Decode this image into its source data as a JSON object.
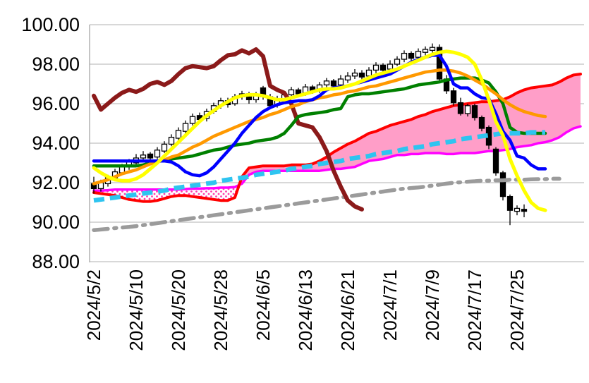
{
  "chart_data": {
    "type": "candlestick",
    "title": "",
    "background": "#FFFFFF",
    "grid": {
      "color": "#C0C0C0",
      "axis_color": "#A6A6A6",
      "grid_on": true
    },
    "y_axis": {
      "min": 88,
      "max": 100,
      "step": 2,
      "ticks": [
        {
          "value": 100,
          "label": "100.00"
        },
        {
          "value": 98,
          "label": "98.00"
        },
        {
          "value": 96,
          "label": "96.00"
        },
        {
          "value": 94,
          "label": "94.00"
        },
        {
          "value": 92,
          "label": "92.00"
        },
        {
          "value": 90,
          "label": "90.00"
        },
        {
          "value": 88,
          "label": "88.00"
        }
      ]
    },
    "x_axis": {
      "ticks": [
        {
          "index": 0,
          "label": "2024/5/2"
        },
        {
          "index": 6,
          "label": "2024/5/10"
        },
        {
          "index": 12,
          "label": "2024/5/20"
        },
        {
          "index": 18,
          "label": "2024/5/28"
        },
        {
          "index": 24,
          "label": "2024/6/5"
        },
        {
          "index": 30,
          "label": "2024/6/13"
        },
        {
          "index": 36,
          "label": "2024/6/21"
        },
        {
          "index": 42,
          "label": "2024/7/1"
        },
        {
          "index": 48,
          "label": "2024/7/9"
        },
        {
          "index": 54,
          "label": "2024/7/17"
        },
        {
          "index": 60,
          "label": "2024/7/25"
        }
      ]
    },
    "candles": {
      "up_fill": "#FFFFFF",
      "down_fill": "#000000",
      "stroke": "#000000",
      "start_index": 0,
      "ohlc": [
        [
          91.95,
          92.3,
          91.45,
          91.7
        ],
        [
          91.7,
          92.15,
          91.55,
          92.0
        ],
        [
          91.95,
          92.4,
          91.8,
          92.25
        ],
        [
          92.25,
          92.7,
          92.1,
          92.55
        ],
        [
          92.5,
          92.95,
          92.4,
          92.8
        ],
        [
          92.8,
          93.2,
          92.65,
          93.05
        ],
        [
          93.0,
          93.45,
          92.9,
          93.25
        ],
        [
          93.25,
          93.6,
          93.1,
          93.4
        ],
        [
          93.45,
          93.55,
          93.0,
          93.25
        ],
        [
          93.3,
          93.8,
          93.2,
          93.65
        ],
        [
          93.6,
          94.1,
          93.5,
          93.95
        ],
        [
          93.95,
          94.45,
          93.85,
          94.3
        ],
        [
          94.25,
          94.8,
          94.15,
          94.65
        ],
        [
          94.6,
          95.15,
          94.5,
          95.0
        ],
        [
          95.0,
          95.5,
          94.9,
          95.35
        ],
        [
          95.4,
          95.55,
          95.0,
          95.2
        ],
        [
          95.25,
          95.75,
          95.1,
          95.6
        ],
        [
          95.6,
          96.05,
          95.5,
          95.9
        ],
        [
          95.9,
          96.3,
          95.75,
          96.15
        ],
        [
          96.15,
          96.3,
          95.8,
          95.95
        ],
        [
          96.0,
          96.5,
          95.9,
          96.35
        ],
        [
          96.35,
          96.65,
          96.2,
          96.5
        ],
        [
          96.5,
          96.6,
          96.0,
          96.2
        ],
        [
          96.2,
          96.6,
          96.05,
          96.45
        ],
        [
          96.8,
          96.9,
          96.2,
          96.35
        ],
        [
          96.35,
          96.5,
          95.75,
          95.9
        ],
        [
          95.95,
          96.4,
          95.8,
          96.25
        ],
        [
          96.2,
          96.6,
          96.1,
          96.45
        ],
        [
          96.45,
          96.85,
          96.3,
          96.7
        ],
        [
          96.7,
          96.8,
          96.35,
          96.5
        ],
        [
          96.55,
          97.0,
          96.4,
          96.85
        ],
        [
          96.85,
          96.95,
          96.5,
          96.65
        ],
        [
          96.65,
          97.1,
          96.55,
          96.95
        ],
        [
          96.95,
          97.3,
          96.8,
          97.15
        ],
        [
          97.15,
          97.25,
          96.75,
          96.9
        ],
        [
          96.95,
          97.45,
          96.8,
          97.25
        ],
        [
          97.2,
          97.6,
          97.05,
          97.4
        ],
        [
          97.4,
          97.75,
          97.25,
          97.55
        ],
        [
          97.55,
          97.7,
          97.2,
          97.35
        ],
        [
          97.4,
          97.85,
          97.25,
          97.7
        ],
        [
          97.7,
          98.1,
          97.55,
          97.95
        ],
        [
          97.95,
          98.05,
          97.55,
          97.7
        ],
        [
          97.75,
          98.2,
          97.6,
          98.0
        ],
        [
          98.0,
          98.4,
          97.9,
          98.25
        ],
        [
          98.25,
          98.7,
          98.1,
          98.55
        ],
        [
          98.55,
          98.65,
          98.15,
          98.3
        ],
        [
          98.35,
          98.8,
          98.2,
          98.65
        ],
        [
          98.6,
          98.9,
          98.45,
          98.75
        ],
        [
          98.7,
          99.05,
          98.55,
          98.85
        ],
        [
          98.85,
          99.0,
          97.1,
          97.25
        ],
        [
          97.25,
          97.45,
          96.5,
          96.65
        ],
        [
          96.65,
          96.8,
          95.9,
          96.05
        ],
        [
          96.05,
          96.3,
          95.4,
          95.5
        ],
        [
          95.5,
          96.0,
          95.35,
          95.9
        ],
        [
          95.9,
          96.0,
          95.15,
          95.3
        ],
        [
          95.3,
          95.4,
          94.6,
          94.75
        ],
        [
          94.8,
          94.9,
          93.7,
          93.9
        ],
        [
          93.7,
          93.8,
          92.35,
          92.5
        ],
        [
          92.5,
          92.6,
          91.1,
          91.3
        ],
        [
          91.3,
          91.4,
          89.85,
          90.6
        ],
        [
          90.55,
          90.85,
          90.35,
          90.7
        ],
        [
          90.65,
          90.9,
          90.25,
          90.55
        ]
      ]
    },
    "cloud": {
      "bull_fill": "#FF9EC8",
      "bear_dot_color": "#FF3FAE",
      "span_a": {
        "name": "red-span-line",
        "color": "#FF0000",
        "width": 4,
        "start_index": 0,
        "values": [
          91.5,
          91.45,
          91.4,
          91.35,
          91.25,
          91.15,
          91.1,
          91.05,
          91.05,
          91.1,
          91.2,
          91.3,
          91.35,
          91.35,
          91.3,
          91.25,
          91.2,
          91.15,
          91.1,
          91.1,
          91.25,
          92.3,
          92.75,
          92.8,
          92.85,
          92.85,
          92.85,
          92.85,
          92.9,
          92.9,
          92.9,
          92.95,
          93.1,
          93.3,
          93.55,
          93.75,
          93.95,
          94.1,
          94.3,
          94.5,
          94.6,
          94.75,
          94.9,
          95.0,
          95.1,
          95.2,
          95.35,
          95.45,
          95.6,
          95.7,
          95.8,
          95.9,
          95.95,
          96.0,
          96.05,
          96.1,
          96.1,
          96.15,
          96.2,
          96.35,
          96.55,
          96.7,
          96.8,
          96.85,
          96.9,
          96.95,
          97.1,
          97.3,
          97.45,
          97.5
        ]
      },
      "span_b": {
        "name": "magenta-span-line",
        "color": "#FF00FF",
        "width": 3.5,
        "start_index": 0,
        "values": [
          91.6,
          91.6,
          91.62,
          91.65,
          91.65,
          91.65,
          91.65,
          91.65,
          91.65,
          91.65,
          91.65,
          91.65,
          91.65,
          91.68,
          91.7,
          91.7,
          91.72,
          91.72,
          91.75,
          91.75,
          91.78,
          91.95,
          92.4,
          92.55,
          92.6,
          92.6,
          92.6,
          92.6,
          92.6,
          92.6,
          92.6,
          92.6,
          92.6,
          92.65,
          92.7,
          92.7,
          92.75,
          92.8,
          92.95,
          93.1,
          93.15,
          93.2,
          93.3,
          93.4,
          93.4,
          93.45,
          93.45,
          93.5,
          93.5,
          93.5,
          93.45,
          93.45,
          93.5,
          93.5,
          93.5,
          93.55,
          93.6,
          93.6,
          93.65,
          93.7,
          93.8,
          93.85,
          93.9,
          94.0,
          94.05,
          94.15,
          94.3,
          94.55,
          94.75,
          94.85
        ]
      }
    },
    "series": [
      {
        "name": "gray-dashdot-line",
        "color": "#9B9B9B",
        "width": 5.5,
        "dash": "20 9 3 9",
        "linecap": "round",
        "start_index": 0,
        "values": [
          89.6,
          89.63,
          89.66,
          89.7,
          89.73,
          89.76,
          89.8,
          89.85,
          89.9,
          89.95,
          90.0,
          90.05,
          90.1,
          90.15,
          90.2,
          90.25,
          90.3,
          90.35,
          90.4,
          90.45,
          90.5,
          90.55,
          90.6,
          90.65,
          90.7,
          90.75,
          90.8,
          90.85,
          90.9,
          90.95,
          91.0,
          91.05,
          91.1,
          91.15,
          91.2,
          91.25,
          91.3,
          91.35,
          91.4,
          91.45,
          91.5,
          91.55,
          91.6,
          91.65,
          91.7,
          91.73,
          91.76,
          91.8,
          91.85,
          91.9,
          91.95,
          92.0,
          92.02,
          92.05,
          92.07,
          92.1,
          92.1,
          92.12,
          92.12,
          92.15,
          92.15,
          92.15,
          92.17,
          92.18,
          92.18,
          92.2,
          92.2
        ]
      },
      {
        "name": "dark-red-line",
        "color": "#8B1A1A",
        "width": 6,
        "dash": "",
        "linecap": "round",
        "start_index": 0,
        "values": [
          96.4,
          95.7,
          96.0,
          96.3,
          96.55,
          96.7,
          96.6,
          96.75,
          97.0,
          97.1,
          96.95,
          97.15,
          97.5,
          97.8,
          97.9,
          97.85,
          97.8,
          97.9,
          98.2,
          98.45,
          98.5,
          98.7,
          98.55,
          98.75,
          98.4,
          96.9,
          96.7,
          96.55,
          96.0,
          95.0,
          94.9,
          94.8,
          94.3,
          93.6,
          92.6,
          91.8,
          91.1,
          90.8,
          90.65
        ]
      },
      {
        "name": "green-line",
        "color": "#008000",
        "width": 4.5,
        "dash": "",
        "linecap": "round",
        "start_index": 0,
        "values": [
          92.85,
          92.85,
          92.85,
          92.85,
          92.85,
          92.85,
          92.85,
          92.9,
          93.0,
          93.1,
          93.15,
          93.2,
          93.25,
          93.3,
          93.35,
          93.45,
          93.55,
          93.65,
          93.7,
          93.8,
          93.9,
          93.95,
          94.0,
          94.1,
          94.15,
          94.2,
          94.3,
          94.5,
          94.9,
          95.35,
          95.45,
          95.5,
          95.55,
          95.6,
          95.7,
          95.75,
          96.35,
          96.45,
          96.5,
          96.5,
          96.55,
          96.6,
          96.65,
          96.7,
          96.75,
          96.85,
          96.95,
          97.0,
          97.05,
          97.1,
          97.2,
          97.25,
          97.3,
          97.3,
          97.3,
          97.2,
          97.05,
          96.6,
          96.0,
          94.8,
          94.55,
          94.5,
          94.5,
          94.5,
          94.5
        ]
      },
      {
        "name": "orange-line",
        "color": "#FF9900",
        "width": 4.5,
        "dash": "",
        "linecap": "round",
        "start_index": 0,
        "values": [
          91.95,
          92.05,
          92.15,
          92.3,
          92.45,
          92.55,
          92.65,
          92.8,
          92.95,
          93.05,
          93.15,
          93.3,
          93.4,
          93.6,
          93.8,
          93.95,
          94.15,
          94.35,
          94.5,
          94.65,
          94.8,
          94.95,
          95.1,
          95.2,
          95.3,
          95.45,
          95.55,
          95.7,
          95.85,
          95.95,
          96.1,
          96.2,
          96.3,
          96.35,
          96.45,
          96.5,
          96.6,
          96.65,
          96.75,
          96.85,
          96.9,
          97.0,
          97.1,
          97.2,
          97.3,
          97.4,
          97.5,
          97.6,
          97.65,
          97.7,
          97.7,
          97.65,
          97.55,
          97.4,
          97.2,
          97.0,
          96.75,
          96.5,
          96.2,
          95.95,
          95.75,
          95.6,
          95.5,
          95.4,
          95.35
        ]
      },
      {
        "name": "cyan-dashed-line",
        "color": "#2EC4F0",
        "width": 6.5,
        "dash": "15 8",
        "linecap": "butt",
        "start_index": 0,
        "values": [
          91.1,
          91.15,
          91.2,
          91.25,
          91.3,
          91.35,
          91.4,
          91.45,
          91.5,
          91.55,
          91.6,
          91.7,
          91.75,
          91.8,
          91.85,
          91.9,
          91.95,
          92.0,
          92.1,
          92.15,
          92.2,
          92.25,
          92.3,
          92.4,
          92.45,
          92.5,
          92.55,
          92.6,
          92.7,
          92.75,
          92.8,
          92.85,
          92.95,
          93.0,
          93.05,
          93.1,
          93.2,
          93.25,
          93.3,
          93.35,
          93.45,
          93.5,
          93.55,
          93.6,
          93.7,
          93.75,
          93.8,
          93.85,
          93.95,
          94.0,
          94.05,
          94.1,
          94.2,
          94.25,
          94.3,
          94.35,
          94.4,
          94.45,
          94.5,
          94.5,
          94.5,
          94.5,
          94.55,
          94.55,
          94.55
        ]
      },
      {
        "name": "blue-line",
        "color": "#0000FF",
        "width": 4.5,
        "dash": "",
        "linecap": "round",
        "start_index": 0,
        "values": [
          93.1,
          93.1,
          93.1,
          93.1,
          93.1,
          93.1,
          93.1,
          93.1,
          93.1,
          93.1,
          93.1,
          93.05,
          92.85,
          92.55,
          92.4,
          92.35,
          92.5,
          92.8,
          93.2,
          93.6,
          94.0,
          94.5,
          94.9,
          95.3,
          95.6,
          95.8,
          95.95,
          96.05,
          96.1,
          96.15,
          96.15,
          96.2,
          96.4,
          96.7,
          96.8,
          96.85,
          96.9,
          97.0,
          97.1,
          97.2,
          97.3,
          97.4,
          97.5,
          97.7,
          97.9,
          98.1,
          98.25,
          98.35,
          98.45,
          98.45,
          97.9,
          97.0,
          96.8,
          96.8,
          96.5,
          96.3,
          96.25,
          95.5,
          94.6,
          94.15,
          93.35,
          93.25,
          92.9,
          92.7,
          92.7
        ]
      },
      {
        "name": "yellow-line",
        "color": "#FFFF00",
        "width": 5,
        "dash": "",
        "linecap": "round",
        "start_index": 0,
        "values": [
          92.75,
          92.5,
          92.3,
          92.15,
          92.1,
          92.1,
          92.2,
          92.4,
          92.7,
          93.0,
          93.35,
          93.7,
          94.05,
          94.4,
          94.75,
          95.1,
          95.4,
          95.65,
          95.9,
          96.1,
          96.3,
          96.4,
          96.45,
          96.45,
          96.4,
          96.3,
          96.2,
          96.2,
          96.3,
          96.4,
          96.5,
          96.6,
          96.7,
          96.75,
          96.75,
          96.8,
          96.9,
          97.0,
          97.15,
          97.3,
          97.45,
          97.55,
          97.65,
          97.75,
          97.9,
          98.05,
          98.2,
          98.35,
          98.5,
          98.6,
          98.65,
          98.6,
          98.5,
          98.35,
          98.0,
          97.2,
          96.2,
          95.1,
          94.4,
          93.2,
          92.35,
          91.6,
          91.0,
          90.7,
          90.6
        ]
      }
    ]
  }
}
